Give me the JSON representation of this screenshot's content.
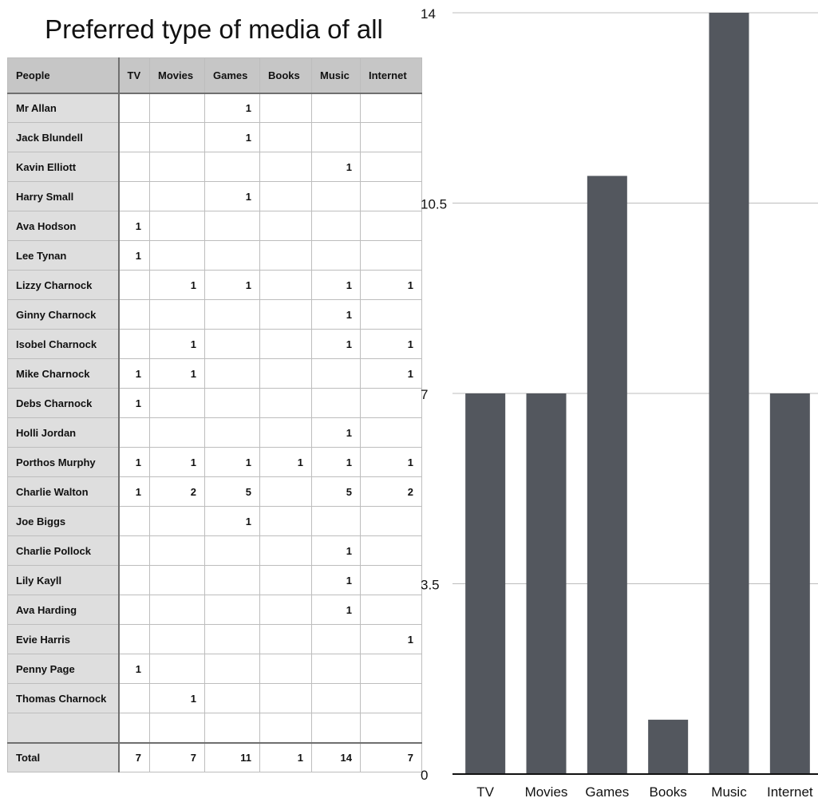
{
  "title": "Preferred type of media of all",
  "table": {
    "headers": [
      "People",
      "TV",
      "Movies",
      "Games",
      "Books",
      "Music",
      "Internet"
    ],
    "rows": [
      {
        "name": "Mr Allan",
        "values": [
          "",
          "",
          "1",
          "",
          "",
          ""
        ]
      },
      {
        "name": "Jack Blundell",
        "values": [
          "",
          "",
          "1",
          "",
          "",
          ""
        ]
      },
      {
        "name": "Kavin Elliott",
        "values": [
          "",
          "",
          "",
          "",
          "1",
          ""
        ]
      },
      {
        "name": "Harry Small",
        "values": [
          "",
          "",
          "1",
          "",
          "",
          ""
        ]
      },
      {
        "name": "Ava Hodson",
        "values": [
          "1",
          "",
          "",
          "",
          "",
          ""
        ]
      },
      {
        "name": "Lee Tynan",
        "values": [
          "1",
          "",
          "",
          "",
          "",
          ""
        ]
      },
      {
        "name": "Lizzy Charnock",
        "values": [
          "",
          "1",
          "1",
          "",
          "1",
          "1"
        ]
      },
      {
        "name": "Ginny Charnock",
        "values": [
          "",
          "",
          "",
          "",
          "1",
          ""
        ]
      },
      {
        "name": "Isobel Charnock",
        "values": [
          "",
          "1",
          "",
          "",
          "1",
          "1"
        ]
      },
      {
        "name": "Mike Charnock",
        "values": [
          "1",
          "1",
          "",
          "",
          "",
          "1"
        ]
      },
      {
        "name": "Debs Charnock",
        "values": [
          "1",
          "",
          "",
          "",
          "",
          ""
        ]
      },
      {
        "name": "Holli Jordan",
        "values": [
          "",
          "",
          "",
          "",
          "1",
          ""
        ]
      },
      {
        "name": "Porthos Murphy",
        "values": [
          "1",
          "1",
          "1",
          "1",
          "1",
          "1"
        ]
      },
      {
        "name": "Charlie Walton",
        "values": [
          "1",
          "2",
          "5",
          "",
          "5",
          "2"
        ]
      },
      {
        "name": "Joe Biggs",
        "values": [
          "",
          "",
          "1",
          "",
          "",
          ""
        ]
      },
      {
        "name": "Charlie Pollock",
        "values": [
          "",
          "",
          "",
          "",
          "1",
          ""
        ]
      },
      {
        "name": "Lily Kayll",
        "values": [
          "",
          "",
          "",
          "",
          "1",
          ""
        ]
      },
      {
        "name": "Ava Harding",
        "values": [
          "",
          "",
          "",
          "",
          "1",
          ""
        ]
      },
      {
        "name": "Evie Harris",
        "values": [
          "",
          "",
          "",
          "",
          "",
          "1"
        ]
      },
      {
        "name": "Penny Page",
        "values": [
          "1",
          "",
          "",
          "",
          "",
          ""
        ]
      },
      {
        "name": "Thomas Charnock",
        "values": [
          "",
          "1",
          "",
          "",
          "",
          ""
        ]
      },
      {
        "name": "",
        "values": [
          "",
          "",
          "",
          "",
          "",
          ""
        ]
      }
    ],
    "total": {
      "name": "Total",
      "values": [
        "7",
        "7",
        "11",
        "1",
        "14",
        "7"
      ]
    }
  },
  "chart_data": {
    "type": "bar",
    "title": "",
    "xlabel": "",
    "ylabel": "",
    "categories": [
      "TV",
      "Movies",
      "Games",
      "Books",
      "Music",
      "Internet"
    ],
    "values": [
      7,
      7,
      11,
      1,
      14,
      7
    ],
    "ylim": [
      0,
      14
    ],
    "yticks": [
      0,
      3.5,
      7,
      10.5,
      14
    ],
    "ytick_labels": [
      "0",
      "3.5",
      "7",
      "10.5",
      "14"
    ],
    "grid": true,
    "legend": "none",
    "bar_color": "#53575e"
  }
}
